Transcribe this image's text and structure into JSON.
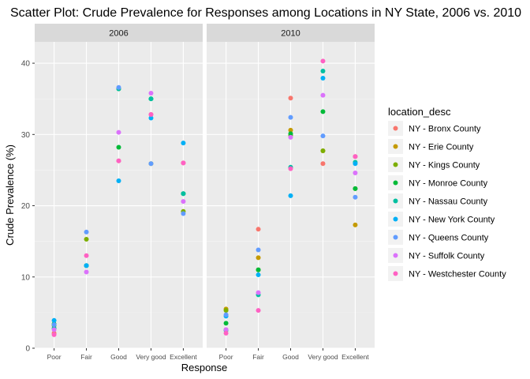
{
  "chart_data": {
    "type": "scatter",
    "title": "Scatter Plot: Crude Prevalence for Responses among Locations in NY State, 2006 vs. 2010",
    "xlabel": "Response",
    "ylabel": "Crude Prevalence (%)",
    "categories": [
      "Poor",
      "Fair",
      "Good",
      "Very good",
      "Excellent"
    ],
    "ylim": [
      0,
      43
    ],
    "yticks": [
      0,
      10,
      20,
      30,
      40
    ],
    "grid": true,
    "legend_title": "location_desc",
    "legend_position": "right",
    "facets": [
      "2006",
      "2010"
    ],
    "series": [
      {
        "name": "NY - Bronx County",
        "color": "#F8766D",
        "values": {
          "2006": [
            2.1,
            11.6,
            26.3,
            32.8,
            26.0
          ],
          "2010": [
            2.6,
            16.7,
            35.1,
            25.9,
            26.9
          ]
        }
      },
      {
        "name": "NY - Erie County",
        "color": "#C49A00",
        "values": {
          "2006": null,
          "2010": [
            5.5,
            12.7,
            30.6,
            27.7,
            17.3
          ]
        }
      },
      {
        "name": "NY - Kings County",
        "color": "#7CAE00",
        "values": {
          "2006": [
            3.2,
            15.3,
            36.4,
            25.9,
            19.2
          ],
          "2010": [
            5.3,
            11.0,
            29.9,
            27.7,
            22.4
          ]
        }
      },
      {
        "name": "NY - Monroe County",
        "color": "#00BA38",
        "values": {
          "2006": [
            3.4,
            11.6,
            28.2,
            35.0,
            21.7
          ],
          "2010": [
            3.5,
            11.0,
            30.1,
            33.2,
            22.4
          ]
        }
      },
      {
        "name": "NY - Nassau County",
        "color": "#00BFA0",
        "values": {
          "2006": [
            2.8,
            11.6,
            36.4,
            35.0,
            21.7
          ],
          "2010": [
            2.5,
            7.5,
            25.4,
            38.9,
            26.1
          ]
        }
      },
      {
        "name": "NY - New York County",
        "color": "#00B0F6",
        "values": {
          "2006": [
            3.9,
            11.6,
            23.5,
            32.3,
            28.8
          ],
          "2010": [
            4.5,
            10.3,
            21.4,
            37.9,
            25.9
          ]
        }
      },
      {
        "name": "NY - Queens County",
        "color": "#619CFF",
        "values": {
          "2006": [
            3.3,
            16.3,
            36.6,
            25.9,
            18.9
          ],
          "2010": [
            4.7,
            13.8,
            32.4,
            29.8,
            21.2
          ]
        }
      },
      {
        "name": "NY - Suffolk County",
        "color": "#DB72FB",
        "values": {
          "2006": [
            2.6,
            10.7,
            30.3,
            35.8,
            20.6
          ],
          "2010": [
            2.6,
            7.8,
            29.6,
            35.5,
            24.6
          ]
        }
      },
      {
        "name": "NY - Westchester County",
        "color": "#FF61C3",
        "values": {
          "2006": [
            1.9,
            13.0,
            26.3,
            32.8,
            26.0
          ],
          "2010": [
            2.1,
            5.3,
            25.2,
            40.3,
            26.9
          ]
        }
      }
    ]
  }
}
